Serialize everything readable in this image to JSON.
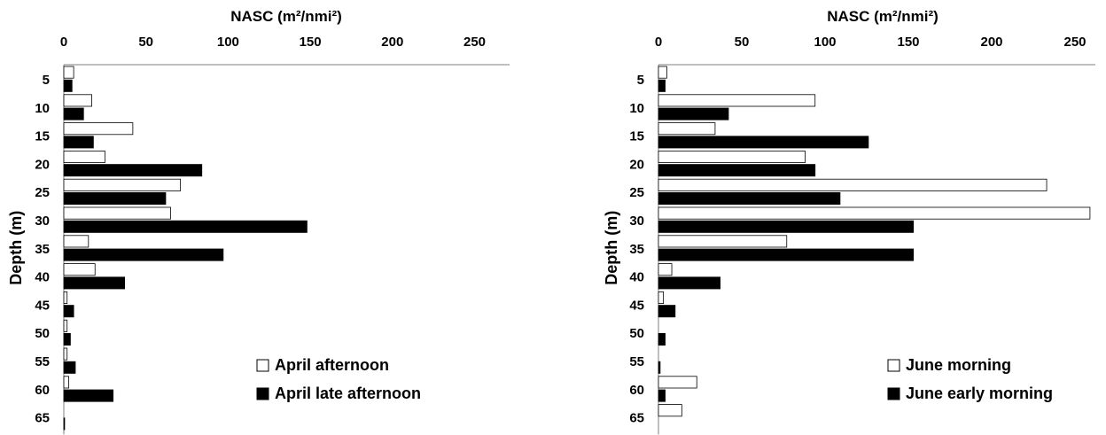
{
  "chart_data": [
    {
      "type": "bar",
      "orientation": "horizontal",
      "xlabel": "NASC (m²/nmi²)",
      "ylabel": "Depth (m)",
      "xlim": [
        0,
        260
      ],
      "xticks": [
        0,
        50,
        100,
        150,
        200,
        250
      ],
      "categories": [
        "5",
        "10",
        "15",
        "20",
        "25",
        "30",
        "35",
        "40",
        "45",
        "50",
        "55",
        "60",
        "65"
      ],
      "series": [
        {
          "name": "April afternoon",
          "color": "#ffffff",
          "values": [
            6,
            17,
            42,
            25,
            71,
            65,
            15,
            19,
            2,
            2,
            2,
            3,
            0
          ]
        },
        {
          "name": "April late afternoon",
          "color": "#000000",
          "values": [
            5,
            12,
            18,
            84,
            62,
            148,
            97,
            37,
            6,
            4,
            7,
            30,
            0.5
          ]
        }
      ],
      "legend_position": "bottom-right",
      "grid": false
    },
    {
      "type": "bar",
      "orientation": "horizontal",
      "xlabel": "NASC (m²/nmi²)",
      "ylabel": "Depth (m)",
      "xlim": [
        0,
        260
      ],
      "xticks": [
        0,
        50,
        100,
        150,
        200,
        250
      ],
      "categories": [
        "5",
        "10",
        "15",
        "20",
        "25",
        "30",
        "35",
        "40",
        "45",
        "50",
        "55",
        "60",
        "65"
      ],
      "series": [
        {
          "name": "June morning",
          "color": "#ffffff",
          "values": [
            5,
            94,
            34,
            88,
            233,
            259,
            77,
            8,
            3,
            0,
            0,
            23,
            14
          ]
        },
        {
          "name": "June early morning",
          "color": "#000000",
          "values": [
            4,
            42,
            126,
            94,
            109,
            153,
            153,
            37,
            10,
            4,
            1,
            4,
            0
          ]
        }
      ],
      "legend_position": "bottom-right",
      "grid": false
    }
  ]
}
